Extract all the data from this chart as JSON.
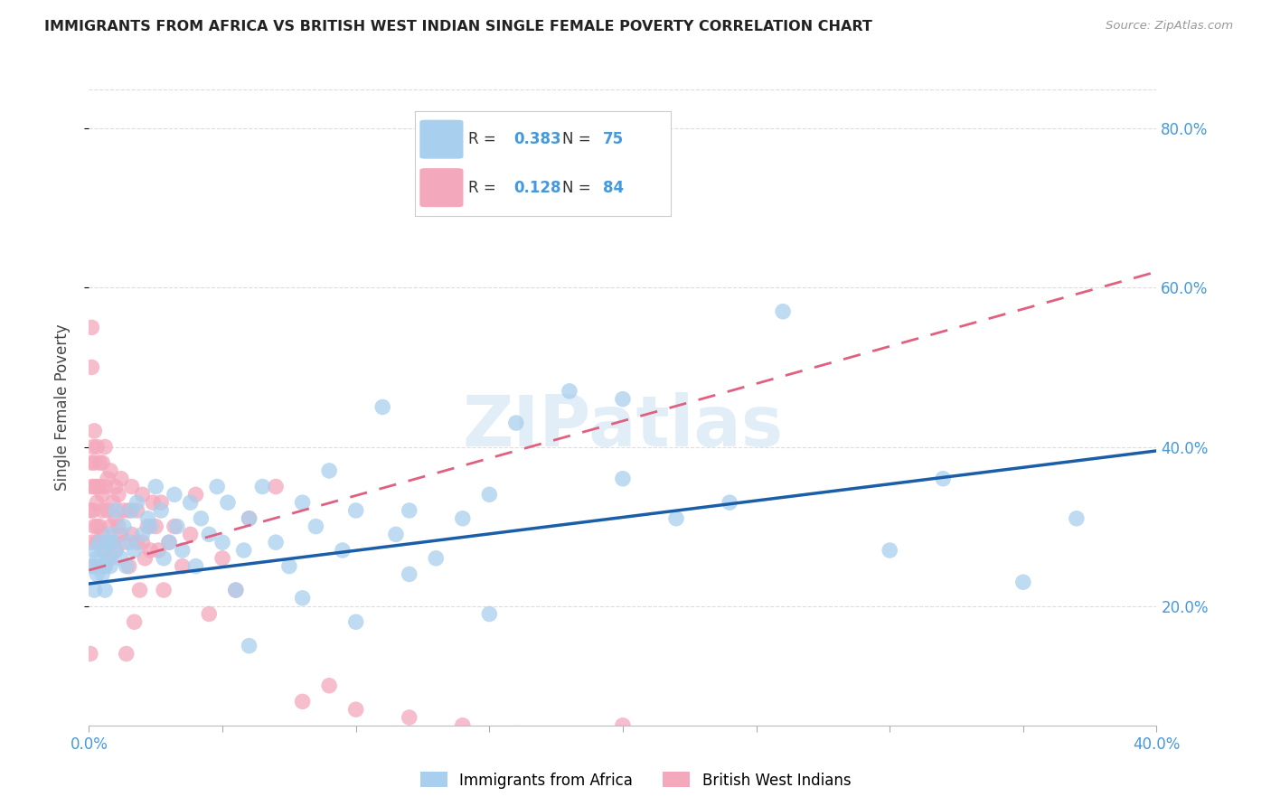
{
  "title": "IMMIGRANTS FROM AFRICA VS BRITISH WEST INDIAN SINGLE FEMALE POVERTY CORRELATION CHART",
  "source": "Source: ZipAtlas.com",
  "ylabel": "Single Female Poverty",
  "xlim": [
    0.0,
    0.4
  ],
  "ylim": [
    0.05,
    0.85
  ],
  "yticks": [
    0.2,
    0.4,
    0.6,
    0.8
  ],
  "xtick_positions": [
    0.0,
    0.05,
    0.1,
    0.15,
    0.2,
    0.25,
    0.3,
    0.35,
    0.4
  ],
  "xtick_labels": [
    "0.0%",
    "",
    "",
    "",
    "",
    "",
    "",
    "",
    "40.0%"
  ],
  "africa_R": 0.383,
  "africa_N": 75,
  "bwi_R": 0.128,
  "bwi_N": 84,
  "africa_color": "#A8CFEE",
  "bwi_color": "#F4A8BC",
  "africa_line_color": "#1A5EA8",
  "bwi_line_color": "#E06080",
  "accent_color": "#4499DD",
  "watermark": "ZIPatlas",
  "africa_x": [
    0.001,
    0.002,
    0.002,
    0.003,
    0.003,
    0.004,
    0.004,
    0.005,
    0.005,
    0.006,
    0.006,
    0.007,
    0.007,
    0.008,
    0.008,
    0.009,
    0.01,
    0.01,
    0.012,
    0.013,
    0.014,
    0.015,
    0.016,
    0.017,
    0.018,
    0.02,
    0.022,
    0.023,
    0.025,
    0.027,
    0.028,
    0.03,
    0.032,
    0.033,
    0.035,
    0.038,
    0.04,
    0.042,
    0.045,
    0.048,
    0.05,
    0.052,
    0.055,
    0.058,
    0.06,
    0.065,
    0.07,
    0.075,
    0.08,
    0.085,
    0.09,
    0.095,
    0.1,
    0.11,
    0.115,
    0.12,
    0.13,
    0.14,
    0.15,
    0.16,
    0.18,
    0.2,
    0.22,
    0.24,
    0.26,
    0.3,
    0.32,
    0.35,
    0.37,
    0.2,
    0.15,
    0.12,
    0.1,
    0.08,
    0.06
  ],
  "africa_y": [
    0.25,
    0.22,
    0.27,
    0.24,
    0.26,
    0.25,
    0.28,
    0.24,
    0.27,
    0.25,
    0.22,
    0.28,
    0.26,
    0.29,
    0.25,
    0.28,
    0.27,
    0.32,
    0.26,
    0.3,
    0.25,
    0.28,
    0.32,
    0.27,
    0.33,
    0.29,
    0.31,
    0.3,
    0.35,
    0.32,
    0.26,
    0.28,
    0.34,
    0.3,
    0.27,
    0.33,
    0.25,
    0.31,
    0.29,
    0.35,
    0.28,
    0.33,
    0.22,
    0.27,
    0.31,
    0.35,
    0.28,
    0.25,
    0.33,
    0.3,
    0.37,
    0.27,
    0.32,
    0.45,
    0.29,
    0.32,
    0.26,
    0.31,
    0.34,
    0.43,
    0.47,
    0.36,
    0.31,
    0.33,
    0.57,
    0.27,
    0.36,
    0.23,
    0.31,
    0.46,
    0.19,
    0.24,
    0.18,
    0.21,
    0.15
  ],
  "bwi_x": [
    0.0005,
    0.0005,
    0.001,
    0.001,
    0.001,
    0.001,
    0.001,
    0.0015,
    0.0015,
    0.002,
    0.002,
    0.002,
    0.002,
    0.002,
    0.003,
    0.003,
    0.003,
    0.003,
    0.003,
    0.004,
    0.004,
    0.004,
    0.004,
    0.005,
    0.005,
    0.005,
    0.005,
    0.006,
    0.006,
    0.006,
    0.006,
    0.007,
    0.007,
    0.007,
    0.008,
    0.008,
    0.008,
    0.009,
    0.009,
    0.01,
    0.01,
    0.01,
    0.011,
    0.011,
    0.012,
    0.012,
    0.013,
    0.013,
    0.014,
    0.015,
    0.015,
    0.016,
    0.016,
    0.017,
    0.018,
    0.018,
    0.019,
    0.02,
    0.02,
    0.021,
    0.022,
    0.023,
    0.024,
    0.025,
    0.026,
    0.027,
    0.028,
    0.03,
    0.032,
    0.035,
    0.038,
    0.04,
    0.045,
    0.05,
    0.055,
    0.06,
    0.07,
    0.08,
    0.09,
    0.1,
    0.12,
    0.14,
    0.16,
    0.2
  ],
  "bwi_y": [
    0.32,
    0.14,
    0.55,
    0.5,
    0.35,
    0.38,
    0.28,
    0.4,
    0.32,
    0.3,
    0.35,
    0.38,
    0.25,
    0.42,
    0.3,
    0.35,
    0.28,
    0.4,
    0.33,
    0.28,
    0.35,
    0.38,
    0.3,
    0.29,
    0.34,
    0.38,
    0.32,
    0.27,
    0.35,
    0.4,
    0.25,
    0.28,
    0.32,
    0.36,
    0.3,
    0.26,
    0.37,
    0.33,
    0.28,
    0.35,
    0.31,
    0.27,
    0.34,
    0.3,
    0.36,
    0.29,
    0.32,
    0.28,
    0.14,
    0.25,
    0.32,
    0.29,
    0.35,
    0.18,
    0.32,
    0.28,
    0.22,
    0.34,
    0.28,
    0.26,
    0.3,
    0.27,
    0.33,
    0.3,
    0.27,
    0.33,
    0.22,
    0.28,
    0.3,
    0.25,
    0.29,
    0.34,
    0.19,
    0.26,
    0.22,
    0.31,
    0.35,
    0.08,
    0.1,
    0.07,
    0.06,
    0.05,
    0.04,
    0.05
  ],
  "bwi_trend_x0": 0.0,
  "bwi_trend_y0": 0.245,
  "bwi_trend_x1": 0.4,
  "bwi_trend_y1": 0.62,
  "africa_trend_x0": 0.0,
  "africa_trend_y0": 0.228,
  "africa_trend_x1": 0.4,
  "africa_trend_y1": 0.395
}
